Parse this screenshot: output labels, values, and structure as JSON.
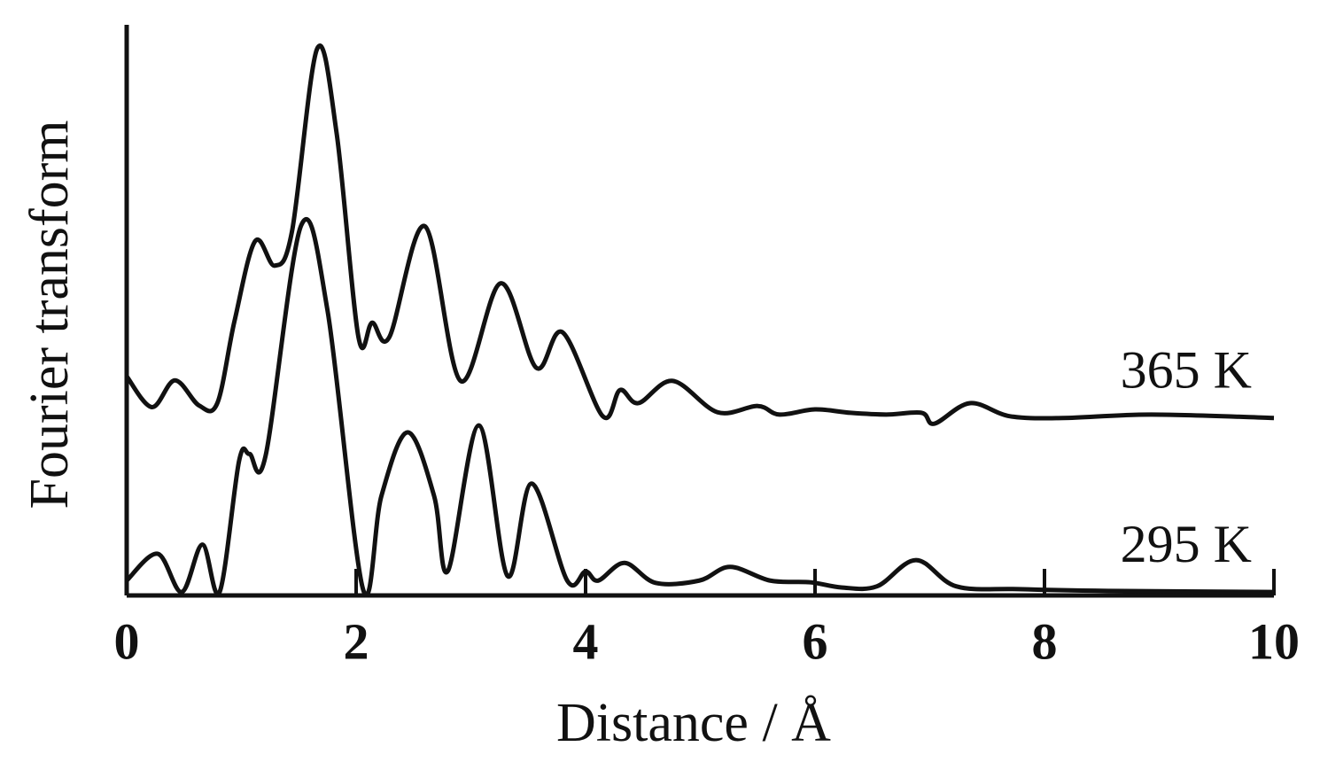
{
  "chart_data": {
    "type": "line",
    "xlabel": "Distance / Å",
    "ylabel": "Fourier transform",
    "xlim": [
      0,
      10
    ],
    "xticks": [
      0,
      2,
      4,
      6,
      8,
      10
    ],
    "ylim": [
      0,
      100
    ],
    "series": [
      {
        "name": "365 K",
        "color": "#111111",
        "x": [
          0,
          0.22,
          0.42,
          0.63,
          0.79,
          0.94,
          1.12,
          1.29,
          1.44,
          1.66,
          1.83,
          2.02,
          2.14,
          2.29,
          2.6,
          2.91,
          3.26,
          3.57,
          3.8,
          4.15,
          4.3,
          4.46,
          4.76,
          5.15,
          5.5,
          5.69,
          6.0,
          6.31,
          6.62,
          6.93,
          7.04,
          7.35,
          7.7,
          8.16,
          8.93,
          10.0
        ],
        "values": [
          38.4,
          33.0,
          37.7,
          33.3,
          33.7,
          48.1,
          62.1,
          57.8,
          63.7,
          95.8,
          81.0,
          45.3,
          47.8,
          45.3,
          64.7,
          37.6,
          54.7,
          39.9,
          46.1,
          31.4,
          36.0,
          33.7,
          37.6,
          32.1,
          33.2,
          31.7,
          32.6,
          32.0,
          31.7,
          32.0,
          30.1,
          33.7,
          31.4,
          31.1,
          31.7,
          31.1
        ]
      },
      {
        "name": "295 K",
        "color": "#111111",
        "x": [
          0,
          0.27,
          0.48,
          0.66,
          0.81,
          0.98,
          1.07,
          1.21,
          1.52,
          1.75,
          2.06,
          2.22,
          2.45,
          2.68,
          2.8,
          3.07,
          3.32,
          3.53,
          3.84,
          4.0,
          4.11,
          4.34,
          4.61,
          4.99,
          5.26,
          5.61,
          5.96,
          6.23,
          6.54,
          6.88,
          7.23,
          7.77,
          8.55,
          10.0
        ],
        "values": [
          2.6,
          7.3,
          0.6,
          8.9,
          0.6,
          23.6,
          24.8,
          24.4,
          64.8,
          50.0,
          1.1,
          17.4,
          28.6,
          17.4,
          4.3,
          29.8,
          3.4,
          19.6,
          2.6,
          4.2,
          2.6,
          5.7,
          2.2,
          2.6,
          5.0,
          2.6,
          2.3,
          1.4,
          1.6,
          6.2,
          1.6,
          1.1,
          0.8,
          0.6
        ]
      }
    ]
  }
}
